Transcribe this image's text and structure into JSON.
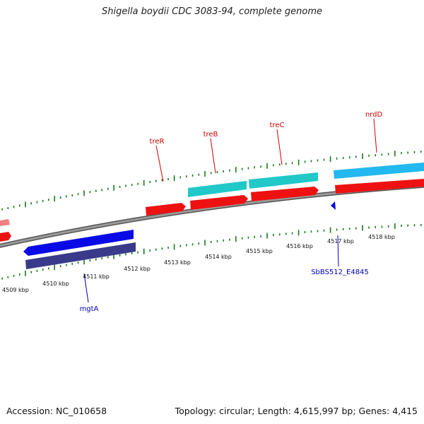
{
  "title": "Shigella boydii CDC 3083-94, complete genome",
  "footer": {
    "accession": "Accession: NC_010658",
    "summary": "Topology: circular; Length: 4,615,997 bp; Genes: 4,415"
  },
  "colors": {
    "backbone": "#8c8c8c",
    "tick": "#1a7a1a",
    "label_upper": "#cc0000",
    "label_lower": "#0000bb",
    "gene_red": "#ee1111",
    "gene_red_light": "#f08080",
    "gene_cyan": "#20c8c8",
    "gene_lightblue": "#22b8f0",
    "gene_blue": "#0a0ae6",
    "gene_navy": "#3a3a8a"
  },
  "upper_labels": [
    {
      "id": "treR",
      "text": "treR"
    },
    {
      "id": "treB",
      "text": "treB"
    },
    {
      "id": "treC",
      "text": "treC"
    },
    {
      "id": "nrdD",
      "text": "nrdD"
    }
  ],
  "lower_labels": [
    {
      "id": "mgtA",
      "text": "mgtA"
    },
    {
      "id": "sbbs",
      "text": "SbBS512_E4845"
    }
  ],
  "kbp_labels": [
    "4509 kbp",
    "4510 kbp",
    "4511 kbp",
    "4512 kbp",
    "4513 kbp",
    "4514 kbp",
    "4515 kbp",
    "4516 kbp",
    "4517 kbp",
    "4518 kbp"
  ]
}
